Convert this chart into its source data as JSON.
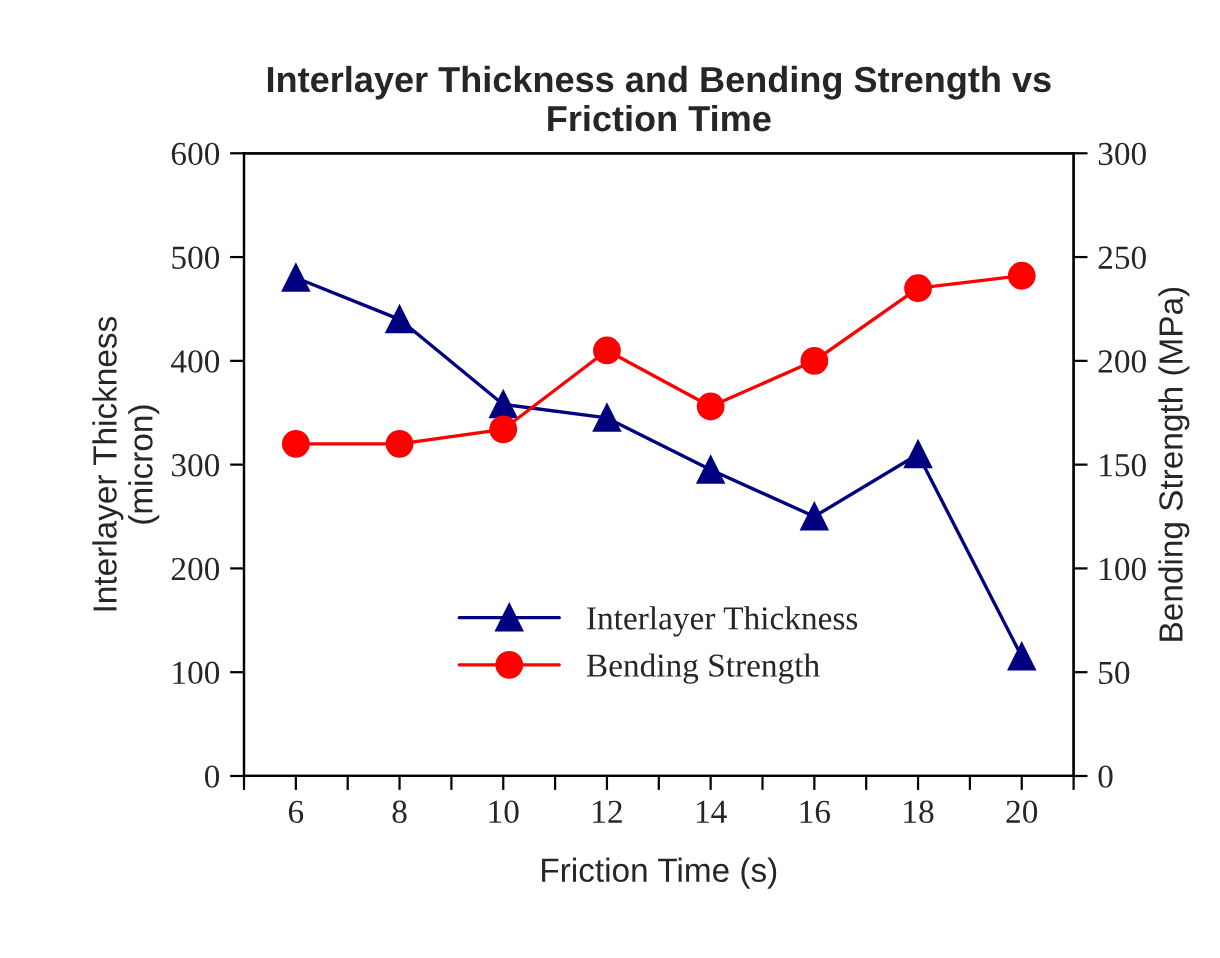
{
  "chart_data": {
    "type": "line",
    "title": "Interlayer Thickness and Bending Strength vs\nFriction Time",
    "xlabel": "Friction Time (s)",
    "ylabel": "Interlayer Thickness\n(micron)",
    "y2label": "Bending Strength (MPa)",
    "x": [
      6,
      8,
      10,
      12,
      14,
      16,
      18,
      20
    ],
    "series": [
      {
        "name": "Interlayer Thickness",
        "color": "#000080",
        "marker": "triangle",
        "values": [
          480,
          440,
          358,
          345,
          295,
          250,
          310,
          115
        ]
      },
      {
        "name": "Bending Strength",
        "color": "#ff0000",
        "marker": "circle",
        "axis": "y2",
        "values": [
          160,
          160,
          167,
          205,
          178,
          200,
          235,
          241
        ]
      }
    ],
    "xlim": [
      5,
      21
    ],
    "xticks": [
      {
        "value": 5,
        "label": null
      },
      6,
      {
        "value": 7,
        "label": null
      },
      8,
      {
        "value": 9,
        "label": null
      },
      10,
      {
        "value": 11,
        "label": null
      },
      12,
      {
        "value": 13,
        "label": null
      },
      14,
      {
        "value": 15,
        "label": null
      },
      16,
      {
        "value": 17,
        "label": null
      },
      18,
      {
        "value": 19,
        "label": null
      },
      20,
      {
        "value": 21,
        "label": null
      }
    ],
    "ylim": [
      0,
      600
    ],
    "yticks": [
      0,
      100,
      200,
      300,
      400,
      500,
      600
    ],
    "y2lim": [
      0,
      300
    ],
    "y2ticks": [
      0,
      50,
      100,
      150,
      200,
      250,
      300
    ],
    "grid": false,
    "legend": "bottom",
    "line_style": "solid"
  }
}
